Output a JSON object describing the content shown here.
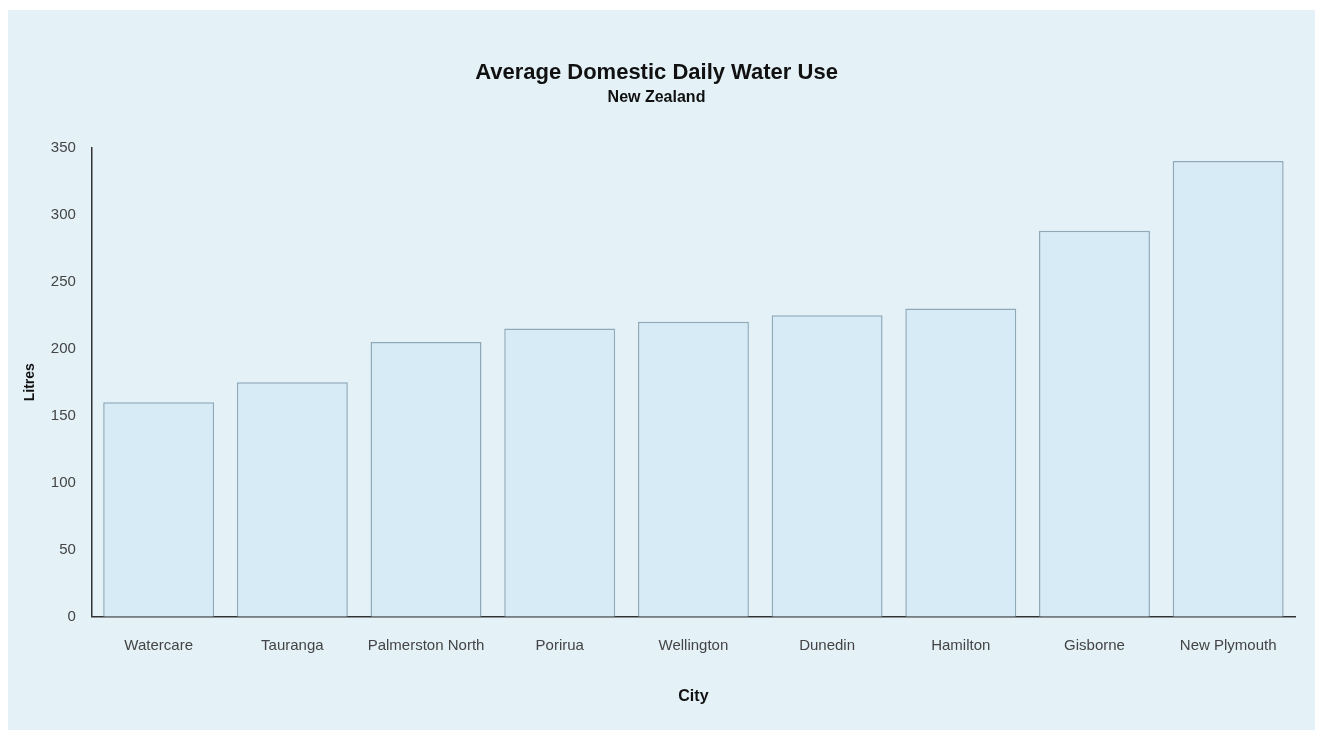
{
  "chart_data": {
    "type": "bar",
    "title": "Average Domestic Daily Water Use",
    "subtitle": "New Zealand",
    "x_label": "City",
    "y_label": "Litres",
    "categories": [
      "Watercare",
      "Tauranga",
      "Palmerston North",
      "Porirua",
      "Wellington",
      "Dunedin",
      "Hamilton",
      "Gisborne",
      "New Plymouth"
    ],
    "values": [
      160,
      175,
      205,
      215,
      220,
      225,
      230,
      288,
      340
    ],
    "color": "#d6ebf6",
    "ylim": [
      0,
      350
    ],
    "yticks": [
      0,
      50,
      100,
      150,
      200,
      250,
      300,
      350
    ],
    "grid": false
  }
}
